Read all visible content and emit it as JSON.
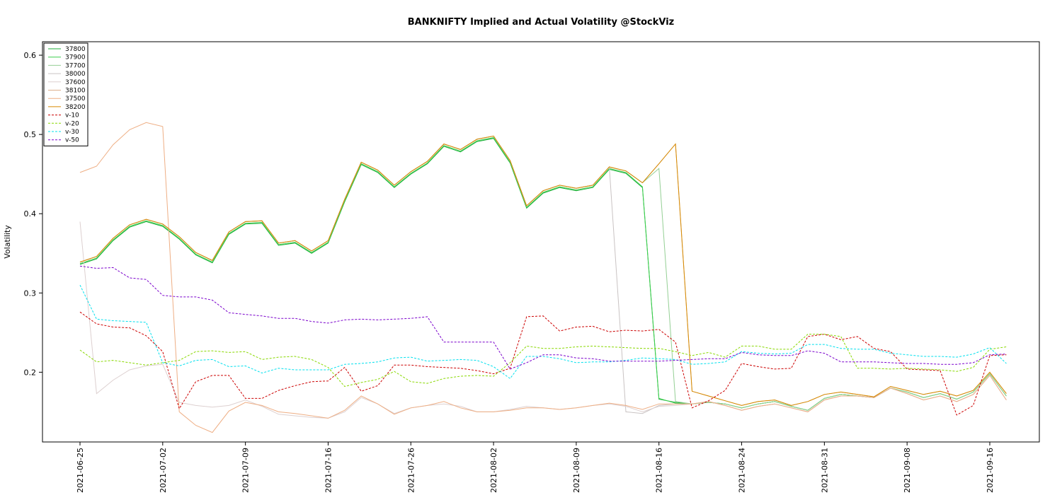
{
  "chart_data": {
    "type": "line",
    "title": "BANKNIFTY Implied and Actual Volatility @StockViz",
    "y_label": "Volatility",
    "categories": [
      "2021-06-25",
      null,
      null,
      null,
      null,
      "2021-07-02",
      null,
      null,
      null,
      null,
      "2021-07-09",
      null,
      null,
      null,
      null,
      "2021-07-16",
      null,
      null,
      null,
      null,
      "2021-07-26",
      null,
      null,
      null,
      null,
      "2021-08-02",
      null,
      null,
      null,
      null,
      "2021-08-09",
      null,
      null,
      null,
      null,
      "2021-08-16",
      null,
      null,
      null,
      null,
      "2021-08-24",
      null,
      null,
      null,
      null,
      "2021-08-31",
      null,
      null,
      null,
      null,
      "2021-09-08",
      null,
      null,
      null,
      null,
      "2021-09-16",
      null
    ],
    "ylim": [
      0.112,
      0.617
    ],
    "yticks": [
      0.2,
      0.3,
      0.4,
      0.5,
      0.6
    ],
    "legend": "topleft",
    "series": [
      {
        "name": "37800",
        "color": "#1fae3a",
        "style": "solid",
        "values": [
          0.336,
          0.343,
          0.366,
          0.383,
          0.39,
          0.384,
          0.368,
          0.348,
          0.338,
          0.374,
          0.387,
          0.388,
          0.36,
          0.363,
          0.35,
          0.363,
          0.415,
          0.462,
          0.452,
          0.433,
          0.45,
          0.463,
          0.485,
          0.478,
          0.491,
          0.495,
          0.464,
          0.407,
          0.426,
          0.433,
          0.429,
          0.433,
          0.456,
          0.451,
          0.433,
          0.166,
          0.162,
          0.16,
          0.162,
          0.16,
          0.155,
          0.16,
          0.163,
          0.157,
          0.152,
          0.167,
          0.172,
          0.17,
          0.168,
          0.18,
          0.175,
          0.168,
          0.173,
          0.166,
          0.175,
          0.198,
          0.17
        ]
      },
      {
        "name": "37900",
        "color": "#3ccf4e",
        "style": "solid",
        "values": [
          0.337,
          0.344,
          0.367,
          0.384,
          0.391,
          0.385,
          0.369,
          0.349,
          0.339,
          0.375,
          0.388,
          0.389,
          0.361,
          0.364,
          0.351,
          0.364,
          0.416,
          0.463,
          0.453,
          0.434,
          0.451,
          0.464,
          0.486,
          0.479,
          0.492,
          0.496,
          0.465,
          0.408,
          0.427,
          0.434,
          0.43,
          0.434,
          0.457,
          0.452,
          0.434,
          0.167,
          0.161,
          0.16,
          0.162,
          0.16,
          0.155,
          0.16,
          0.163,
          0.157,
          0.152,
          0.167,
          0.172,
          0.17,
          0.168,
          0.18,
          0.175,
          0.168,
          0.173,
          0.166,
          0.175,
          0.198,
          0.17
        ]
      },
      {
        "name": "37700",
        "color": "#94cf94",
        "style": "solid",
        "values": [
          0.339,
          0.346,
          0.369,
          0.386,
          0.393,
          0.387,
          0.371,
          0.351,
          0.341,
          0.377,
          0.39,
          0.391,
          0.363,
          0.366,
          0.353,
          0.366,
          0.418,
          0.465,
          0.455,
          0.436,
          0.453,
          0.466,
          0.488,
          0.481,
          0.494,
          0.498,
          0.467,
          0.41,
          0.429,
          0.436,
          0.432,
          0.436,
          0.459,
          0.454,
          0.439,
          0.457,
          0.163,
          0.16,
          0.162,
          0.16,
          0.155,
          0.16,
          0.163,
          0.157,
          0.152,
          0.167,
          0.172,
          0.17,
          0.168,
          0.18,
          0.175,
          0.168,
          0.173,
          0.166,
          0.175,
          0.198,
          0.17
        ]
      },
      {
        "name": "38000",
        "color": "#c9c3c3",
        "style": "solid",
        "values": [
          0.339,
          0.346,
          0.369,
          0.386,
          0.393,
          0.387,
          0.371,
          0.351,
          0.341,
          0.377,
          0.39,
          0.391,
          0.363,
          0.366,
          0.353,
          0.366,
          0.418,
          0.465,
          0.455,
          0.436,
          0.453,
          0.466,
          0.488,
          0.481,
          0.494,
          0.498,
          0.467,
          0.41,
          0.429,
          0.436,
          0.432,
          0.436,
          0.459,
          0.15,
          0.148,
          0.158,
          0.16,
          0.16,
          0.163,
          0.158,
          0.152,
          0.157,
          0.16,
          0.155,
          0.15,
          0.165,
          0.17,
          0.17,
          0.168,
          0.18,
          0.173,
          0.165,
          0.17,
          0.163,
          0.172,
          0.196,
          0.165
        ]
      },
      {
        "name": "37600",
        "color": "#ddd0d0",
        "style": "solid",
        "values": [
          0.39,
          0.173,
          0.19,
          0.203,
          0.208,
          0.21,
          0.162,
          0.158,
          0.156,
          0.158,
          0.165,
          0.157,
          0.147,
          0.145,
          0.143,
          0.142,
          0.15,
          0.168,
          0.16,
          0.148,
          0.155,
          0.158,
          0.16,
          0.157,
          0.15,
          0.15,
          0.153,
          0.157,
          0.155,
          0.153,
          0.155,
          0.158,
          0.16,
          0.157,
          0.15,
          0.157,
          0.158,
          0.16,
          0.163,
          0.158,
          0.152,
          0.157,
          0.16,
          0.155,
          0.15,
          0.165,
          0.17,
          0.17,
          0.168,
          0.18,
          0.173,
          0.165,
          0.17,
          0.163,
          0.172,
          0.196,
          0.165
        ]
      },
      {
        "name": "38100",
        "color": "#dcae8c",
        "style": "solid",
        "values": [
          0.339,
          0.346,
          0.369,
          0.386,
          0.393,
          0.387,
          0.371,
          0.351,
          0.341,
          0.377,
          0.39,
          0.391,
          0.363,
          0.366,
          0.353,
          0.366,
          0.418,
          0.465,
          0.455,
          0.436,
          0.453,
          0.466,
          0.488,
          0.481,
          0.494,
          0.498,
          0.467,
          0.41,
          0.429,
          0.436,
          0.432,
          0.436,
          0.459,
          0.454,
          0.439,
          0.463,
          0.488,
          0.176,
          0.17,
          0.164,
          0.158,
          0.163,
          0.165,
          0.158,
          0.163,
          0.172,
          0.175,
          0.172,
          0.169,
          0.182,
          0.177,
          0.172,
          0.176,
          0.17,
          0.177,
          0.2,
          0.173
        ]
      },
      {
        "name": "37500",
        "color": "#eeae84",
        "style": "solid",
        "values": [
          0.452,
          0.46,
          0.487,
          0.506,
          0.515,
          0.51,
          0.15,
          0.133,
          0.124,
          0.151,
          0.162,
          0.158,
          0.15,
          0.148,
          0.145,
          0.142,
          0.152,
          0.17,
          0.16,
          0.147,
          0.155,
          0.158,
          0.163,
          0.155,
          0.15,
          0.15,
          0.152,
          0.155,
          0.155,
          0.153,
          0.155,
          0.158,
          0.161,
          0.158,
          0.153,
          0.16,
          0.16,
          0.16,
          0.163,
          0.158,
          0.152,
          0.157,
          0.16,
          0.155,
          0.15,
          0.165,
          0.17,
          0.17,
          0.168,
          0.18,
          0.173,
          0.165,
          0.17,
          0.163,
          0.172,
          0.196,
          0.165
        ]
      },
      {
        "name": "38200",
        "color": "#d68a00",
        "style": "solid",
        "values": [
          0.339,
          0.346,
          0.369,
          0.386,
          0.393,
          0.387,
          0.371,
          0.351,
          0.341,
          0.377,
          0.39,
          0.391,
          0.363,
          0.366,
          0.353,
          0.366,
          0.418,
          0.465,
          0.455,
          0.436,
          0.453,
          0.466,
          0.488,
          0.481,
          0.494,
          0.498,
          0.467,
          0.41,
          0.429,
          0.436,
          0.432,
          0.436,
          0.459,
          0.454,
          0.439,
          0.463,
          0.488,
          0.176,
          0.17,
          0.164,
          0.158,
          0.163,
          0.165,
          0.158,
          0.163,
          0.172,
          0.175,
          0.172,
          0.169,
          0.182,
          0.177,
          0.172,
          0.176,
          0.17,
          0.177,
          0.2,
          0.173
        ]
      },
      {
        "name": "v-10",
        "color": "#cc0000",
        "style": "dashed",
        "values": [
          0.276,
          0.261,
          0.257,
          0.256,
          0.246,
          0.226,
          0.154,
          0.188,
          0.196,
          0.196,
          0.167,
          0.167,
          0.177,
          0.183,
          0.188,
          0.189,
          0.206,
          0.176,
          0.183,
          0.209,
          0.209,
          0.207,
          0.206,
          0.205,
          0.202,
          0.198,
          0.205,
          0.27,
          0.271,
          0.252,
          0.257,
          0.258,
          0.251,
          0.253,
          0.252,
          0.254,
          0.238,
          0.155,
          0.164,
          0.177,
          0.211,
          0.207,
          0.204,
          0.205,
          0.245,
          0.248,
          0.241,
          0.245,
          0.23,
          0.226,
          0.204,
          0.203,
          0.202,
          0.146,
          0.158,
          0.221,
          0.222
        ]
      },
      {
        "name": "v-20",
        "color": "#88d800",
        "style": "dashed",
        "values": [
          0.228,
          0.213,
          0.215,
          0.212,
          0.209,
          0.212,
          0.215,
          0.226,
          0.227,
          0.225,
          0.226,
          0.216,
          0.219,
          0.22,
          0.216,
          0.206,
          0.182,
          0.187,
          0.191,
          0.201,
          0.188,
          0.186,
          0.192,
          0.195,
          0.196,
          0.195,
          0.212,
          0.233,
          0.23,
          0.23,
          0.232,
          0.233,
          0.232,
          0.231,
          0.23,
          0.23,
          0.226,
          0.221,
          0.225,
          0.219,
          0.233,
          0.233,
          0.229,
          0.229,
          0.248,
          0.248,
          0.245,
          0.205,
          0.205,
          0.204,
          0.205,
          0.204,
          0.203,
          0.201,
          0.206,
          0.229,
          0.232
        ]
      },
      {
        "name": "v-30",
        "color": "#00e0ee",
        "style": "dashed",
        "values": [
          0.31,
          0.267,
          0.265,
          0.264,
          0.263,
          0.212,
          0.208,
          0.215,
          0.216,
          0.207,
          0.208,
          0.199,
          0.205,
          0.203,
          0.203,
          0.203,
          0.21,
          0.211,
          0.213,
          0.218,
          0.219,
          0.214,
          0.215,
          0.216,
          0.215,
          0.207,
          0.192,
          0.22,
          0.22,
          0.217,
          0.212,
          0.213,
          0.213,
          0.215,
          0.218,
          0.217,
          0.216,
          0.21,
          0.211,
          0.213,
          0.226,
          0.224,
          0.223,
          0.224,
          0.235,
          0.235,
          0.23,
          0.229,
          0.229,
          0.224,
          0.222,
          0.22,
          0.22,
          0.219,
          0.223,
          0.231,
          0.211
        ]
      },
      {
        "name": "v-50",
        "color": "#7a00cc",
        "style": "dashed",
        "values": [
          0.334,
          0.331,
          0.332,
          0.319,
          0.317,
          0.297,
          0.295,
          0.295,
          0.291,
          0.275,
          0.273,
          0.271,
          0.268,
          0.268,
          0.264,
          0.262,
          0.266,
          0.267,
          0.266,
          0.267,
          0.268,
          0.27,
          0.238,
          0.238,
          0.238,
          0.238,
          0.204,
          0.212,
          0.222,
          0.222,
          0.218,
          0.217,
          0.214,
          0.214,
          0.214,
          0.214,
          0.215,
          0.216,
          0.217,
          0.217,
          0.225,
          0.222,
          0.221,
          0.221,
          0.227,
          0.224,
          0.213,
          0.213,
          0.213,
          0.212,
          0.211,
          0.211,
          0.21,
          0.21,
          0.212,
          0.222,
          0.223
        ]
      }
    ]
  }
}
